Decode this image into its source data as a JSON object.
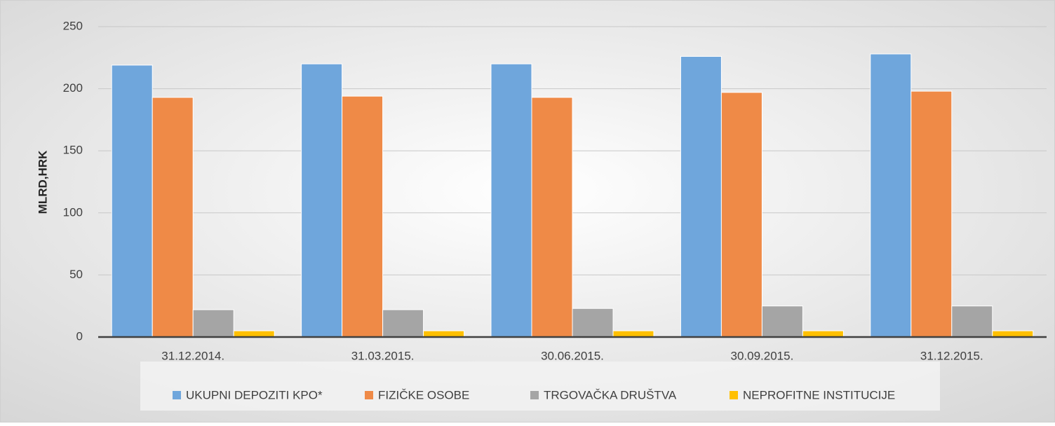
{
  "chart_data": {
    "type": "bar",
    "y_label": "MLRD,HRK",
    "categories": [
      "31.12.2014.",
      "31.03.2015.",
      "30.06.2015.",
      "30.09.2015.",
      "31.12.2015."
    ],
    "series": [
      {
        "name": "UKUPNI DEPOZITI KPO*",
        "color": "#6fa6dc",
        "values": [
          219,
          220,
          220,
          226,
          228
        ]
      },
      {
        "name": "FIZIČKE OSOBE",
        "color": "#ef8a47",
        "values": [
          193,
          194,
          193,
          197,
          198
        ]
      },
      {
        "name": "TRGOVAČKA DRUŠTVA",
        "color": "#a5a5a5",
        "values": [
          22,
          22,
          23,
          25,
          25
        ]
      },
      {
        "name": "NEPROFITNE INSTITUCIJE",
        "color": "#ffc000",
        "values": [
          5,
          5,
          5,
          5,
          5
        ]
      }
    ],
    "ylim": [
      0,
      250
    ],
    "yticks": [
      0,
      50,
      100,
      150,
      200,
      250
    ],
    "grid": true,
    "legend": "bottom"
  }
}
